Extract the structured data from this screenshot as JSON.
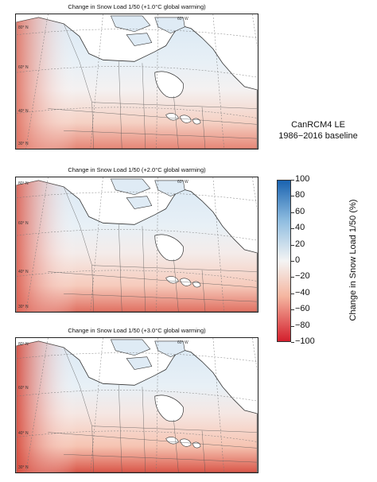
{
  "panels": [
    {
      "title": "Change in Snow Load 1/50 (+1.0°C global warming)",
      "intensity": 0.35
    },
    {
      "title": "Change in Snow Load 1/50 (+2.0°C global warming)",
      "intensity": 0.65
    },
    {
      "title": "Change in Snow Load 1/50 (+3.0°C global warming)",
      "intensity": 1.0
    }
  ],
  "map_labels": {
    "lat_80": "80° N",
    "lat_60": "60° N",
    "lat_40": "40° N",
    "lat_30": "30° N",
    "lon_60w": "60° W"
  },
  "annotation": {
    "line1": "CanRCM4 LE",
    "line2": "1986−2016 baseline"
  },
  "colorbar": {
    "title": "Change in Snow Load 1/50 (%)",
    "ticks": [
      "100",
      "80",
      "60",
      "40",
      "20",
      "0",
      "−20",
      "−40",
      "−60",
      "−80",
      "−100"
    ],
    "colors": {
      "max": "#1a63b0",
      "mid": "#f4f4f4",
      "min": "#d31f2d"
    }
  }
}
